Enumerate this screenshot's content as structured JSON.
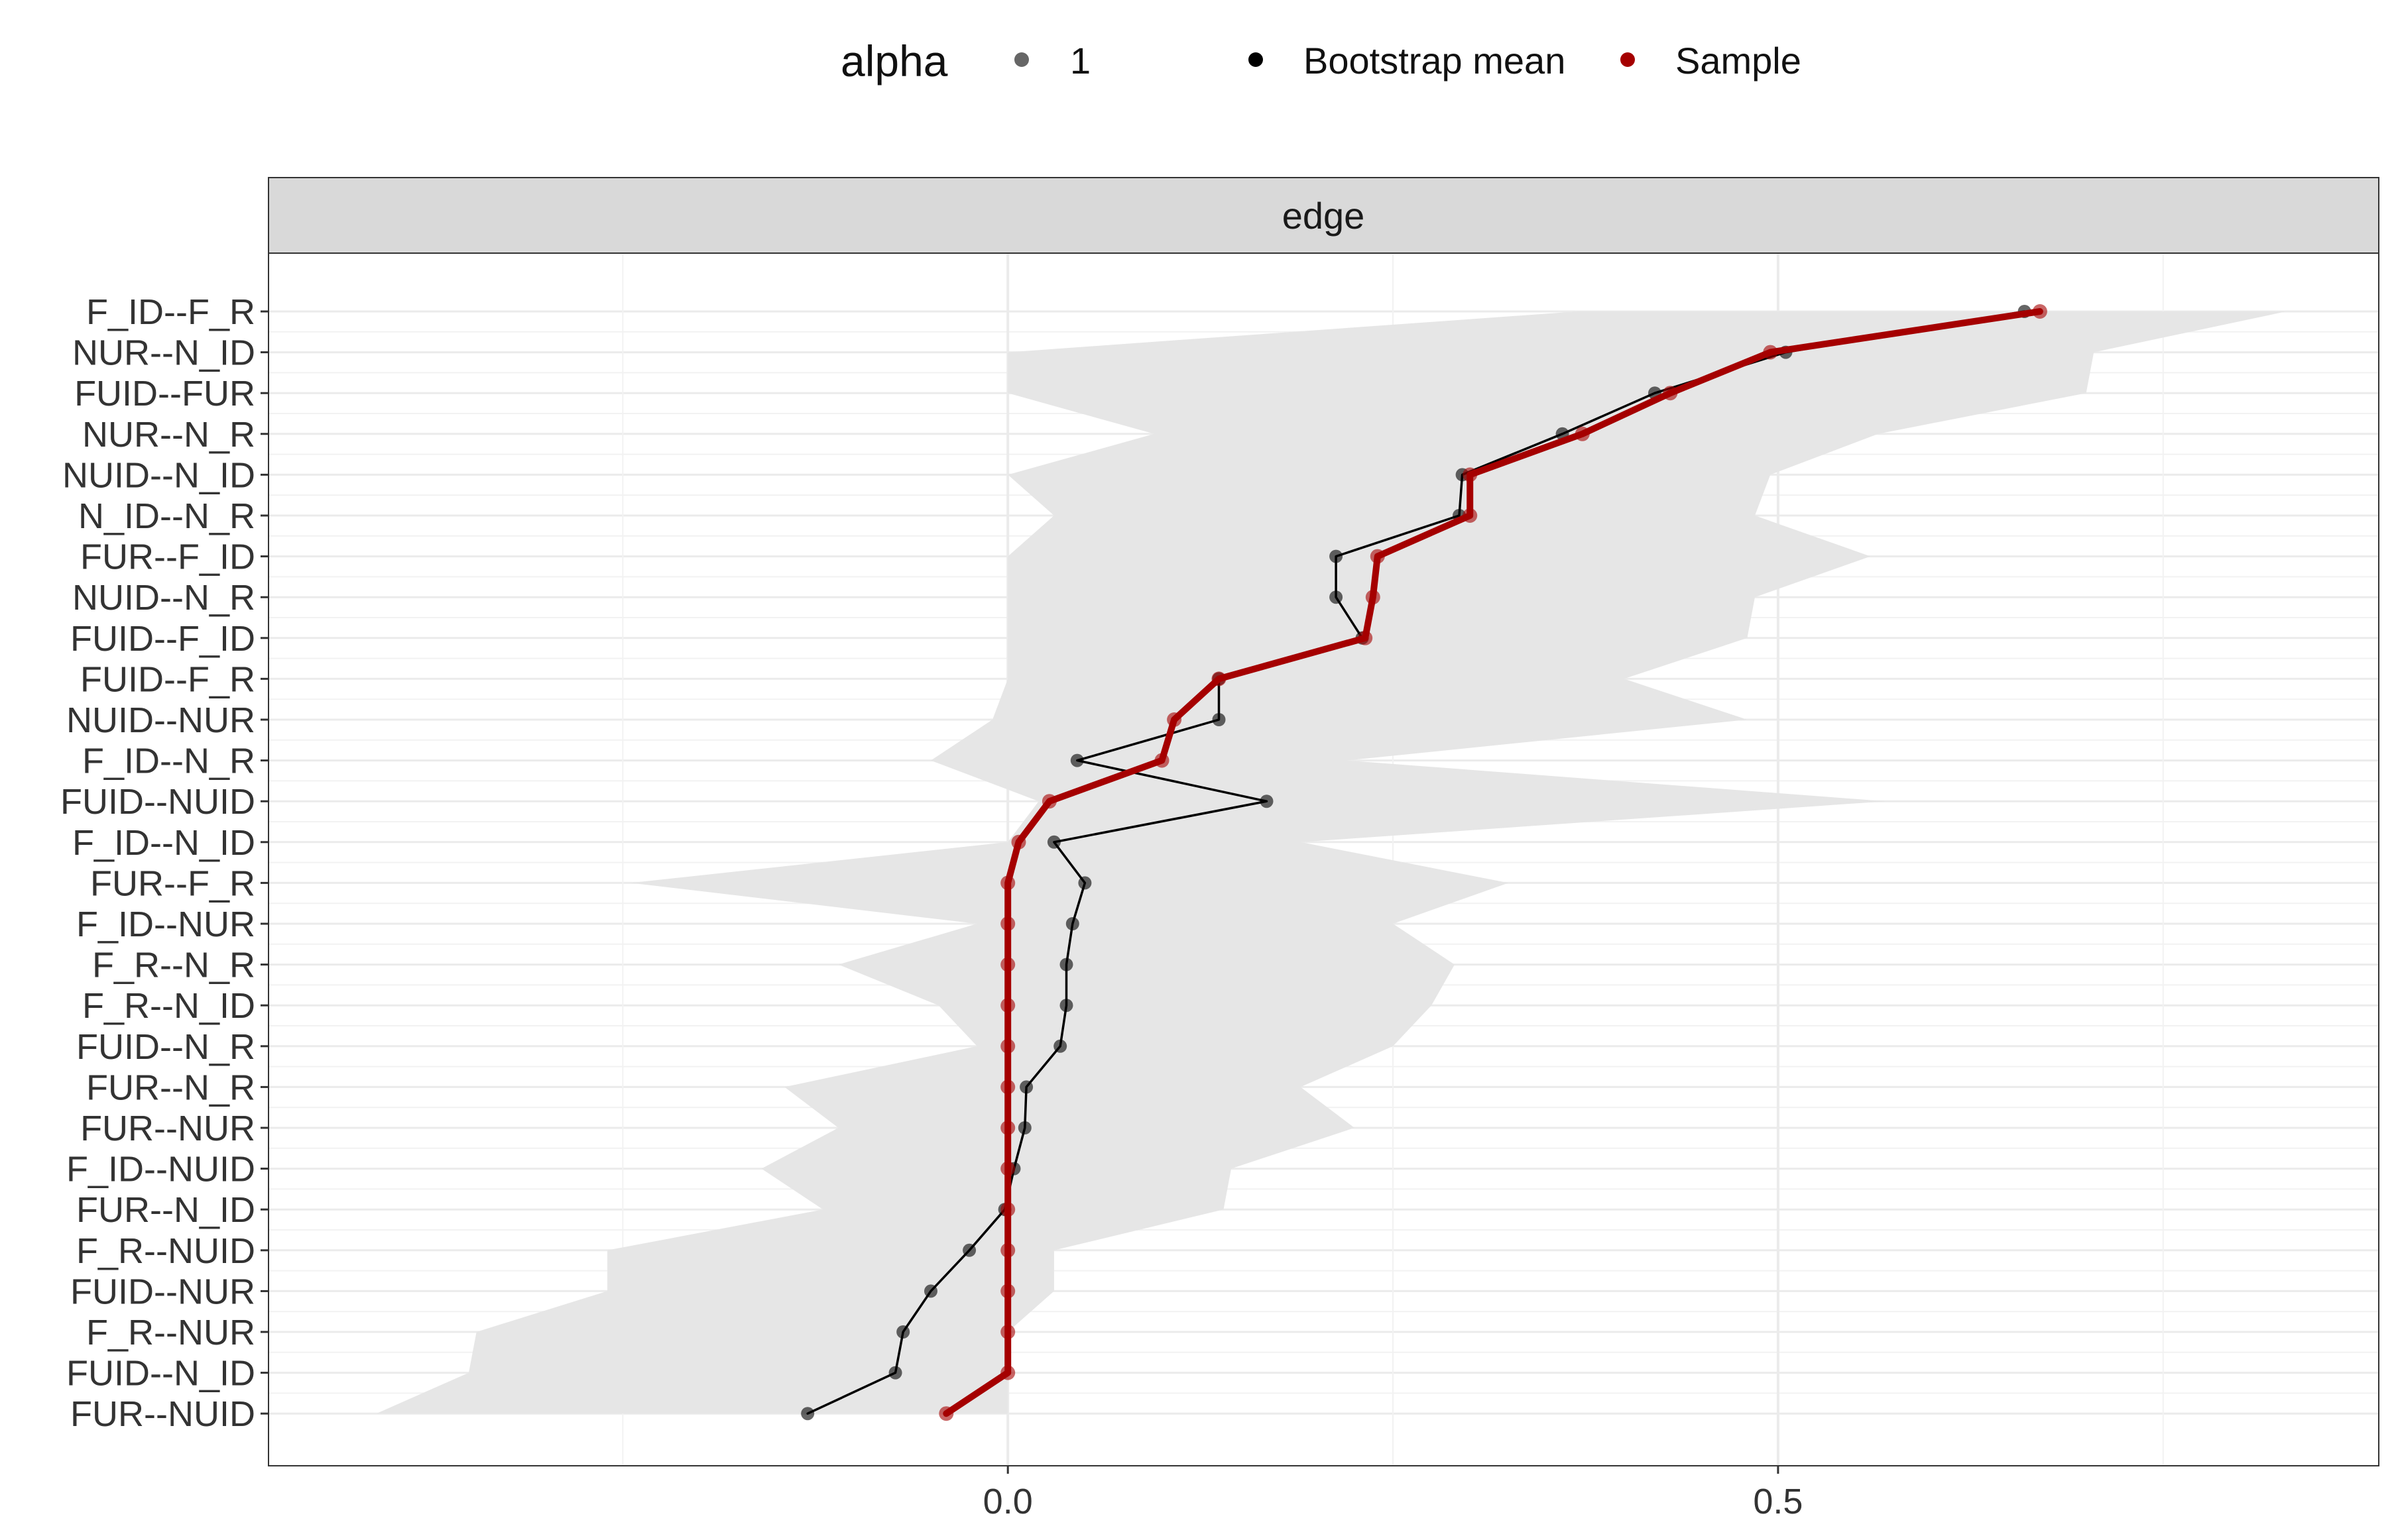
{
  "legend": {
    "alpha_title": "alpha",
    "alpha_value": "1",
    "bootstrap_label": "Bootstrap mean",
    "sample_label": "Sample"
  },
  "colors": {
    "bootstrap": "#000000",
    "sample": "#a50000",
    "ci_band": "#e6e6e6",
    "strip": "#d9d9d9",
    "grid_major": "#ebebeb",
    "grid_minor": "#f2f2f2"
  },
  "chart_data": {
    "type": "line",
    "facet": "edge",
    "xlim": [
      -0.48,
      0.89
    ],
    "x_ticks": [
      0.0,
      0.5
    ],
    "x_tick_labels": [
      "0.0",
      "0.5"
    ],
    "grid": true,
    "legend_position": "top",
    "categories": [
      "F_ID--F_R",
      "NUR--N_ID",
      "FUID--FUR",
      "NUR--N_R",
      "NUID--N_ID",
      "N_ID--N_R",
      "FUR--F_ID",
      "NUID--N_R",
      "FUID--F_ID",
      "FUID--F_R",
      "NUID--NUR",
      "F_ID--N_R",
      "FUID--NUID",
      "F_ID--N_ID",
      "FUR--F_R",
      "F_ID--NUR",
      "F_R--N_R",
      "F_R--N_ID",
      "FUID--N_R",
      "FUR--N_R",
      "FUR--NUR",
      "F_ID--NUID",
      "FUR--N_ID",
      "F_R--NUID",
      "FUID--NUR",
      "F_R--NUR",
      "FUID--N_ID",
      "FUR--NUID"
    ],
    "series": [
      {
        "name": "Bootstrap mean",
        "values": [
          0.66,
          0.505,
          0.42,
          0.36,
          0.295,
          0.293,
          0.213,
          0.213,
          0.23,
          0.137,
          0.137,
          0.045,
          0.168,
          0.03,
          0.05,
          0.042,
          0.038,
          0.038,
          0.034,
          0.012,
          0.011,
          0.004,
          -0.002,
          -0.025,
          -0.05,
          -0.068,
          -0.073,
          -0.13
        ]
      },
      {
        "name": "Sample",
        "values": [
          0.67,
          0.495,
          0.43,
          0.373,
          0.3,
          0.3,
          0.24,
          0.237,
          0.232,
          0.137,
          0.108,
          0.1,
          0.027,
          0.007,
          0.0,
          0.0,
          0.0,
          0.0,
          0.0,
          0.0,
          0.0,
          0.0,
          0.0,
          0.0,
          0.0,
          0.0,
          0.0,
          -0.04
        ]
      },
      {
        "name": "ci_lower",
        "values": [
          0.37,
          0.0,
          0.0,
          0.095,
          0.0,
          0.03,
          0.0,
          0.0,
          0.0,
          0.0,
          -0.01,
          -0.05,
          0.02,
          0.0,
          -0.245,
          -0.02,
          -0.11,
          -0.045,
          -0.02,
          -0.145,
          -0.11,
          -0.16,
          -0.12,
          -0.26,
          -0.26,
          -0.345,
          -0.35,
          -0.41
        ]
      },
      {
        "name": "ci_upper",
        "values": [
          0.83,
          0.705,
          0.7,
          0.565,
          0.495,
          0.485,
          0.56,
          0.485,
          0.48,
          0.4,
          0.48,
          0.22,
          0.57,
          0.19,
          0.325,
          0.25,
          0.29,
          0.275,
          0.25,
          0.19,
          0.225,
          0.145,
          0.14,
          0.03,
          0.03,
          0.0,
          0.0,
          0.0
        ]
      }
    ]
  }
}
